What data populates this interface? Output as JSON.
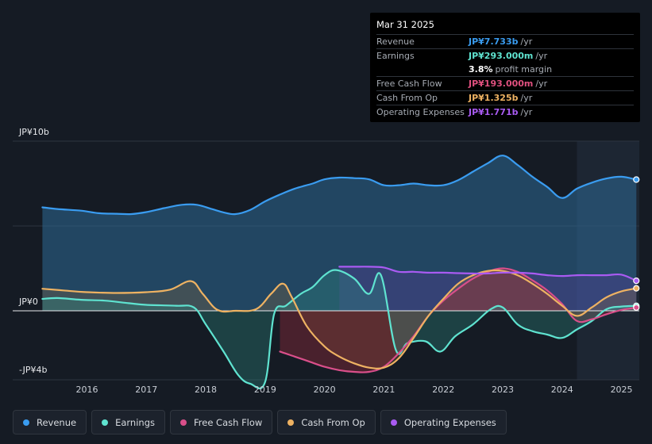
{
  "tooltip": {
    "date": "Mar 31 2025",
    "rows": [
      {
        "label": "Revenue",
        "value": "JP¥7.733b",
        "unit": "/yr",
        "color": "#3a9cf0"
      },
      {
        "label": "Earnings",
        "value": "JP¥293.000m",
        "unit": "/yr",
        "color": "#5fe3d0"
      },
      {
        "label": "",
        "value": "3.8%",
        "unit": "profit margin",
        "color": "#ffffff"
      },
      {
        "label": "Free Cash Flow",
        "value": "JP¥193.000m",
        "unit": "/yr",
        "color": "#e0507f"
      },
      {
        "label": "Cash From Op",
        "value": "JP¥1.325b",
        "unit": "/yr",
        "color": "#eeb262"
      },
      {
        "label": "Operating Expenses",
        "value": "JP¥1.771b",
        "unit": "/yr",
        "color": "#a95bf2"
      }
    ]
  },
  "legend": [
    {
      "label": "Revenue",
      "color": "#3a9cf0"
    },
    {
      "label": "Earnings",
      "color": "#5fe3d0"
    },
    {
      "label": "Free Cash Flow",
      "color": "#d94f8a"
    },
    {
      "label": "Cash From Op",
      "color": "#eeb262"
    },
    {
      "label": "Operating Expenses",
      "color": "#a95bf2"
    }
  ],
  "chart_data": {
    "type": "area",
    "y_unit": "JP¥ billions",
    "ylim": [
      -4,
      10
    ],
    "y_tick_labels": [
      {
        "value": 10,
        "label": "JP¥10b"
      },
      {
        "value": 0,
        "label": "JP¥0"
      },
      {
        "value": -4,
        "label": "-JP¥4b"
      }
    ],
    "x_tick_labels": [
      "2016",
      "2017",
      "2018",
      "2019",
      "2020",
      "2021",
      "2022",
      "2023",
      "2024",
      "2025"
    ],
    "x_tick_values": [
      2016,
      2017,
      2018,
      2019,
      2020,
      2021,
      2022,
      2023,
      2024,
      2025
    ],
    "xlim": [
      2014.75,
      2025.3
    ],
    "highlight_from": 2024.25,
    "series": [
      {
        "name": "Revenue",
        "color": "#3a9cf0",
        "x": [
          2015.25,
          2015.5,
          2015.9,
          2016.2,
          2016.5,
          2016.75,
          2017.0,
          2017.3,
          2017.6,
          2017.85,
          2018.1,
          2018.3,
          2018.5,
          2018.75,
          2019.0,
          2019.25,
          2019.5,
          2019.8,
          2020.0,
          2020.25,
          2020.5,
          2020.75,
          2021.0,
          2021.25,
          2021.5,
          2021.75,
          2022.0,
          2022.25,
          2022.5,
          2022.75,
          2023.0,
          2023.25,
          2023.5,
          2023.75,
          2024.0,
          2024.25,
          2024.5,
          2024.75,
          2025.0,
          2025.25
        ],
        "values": [
          6.1,
          6.0,
          5.9,
          5.75,
          5.72,
          5.7,
          5.82,
          6.05,
          6.25,
          6.25,
          6.0,
          5.8,
          5.7,
          5.95,
          6.45,
          6.85,
          7.2,
          7.5,
          7.75,
          7.85,
          7.82,
          7.75,
          7.4,
          7.4,
          7.5,
          7.4,
          7.4,
          7.7,
          8.2,
          8.7,
          9.15,
          8.6,
          7.9,
          7.3,
          6.65,
          7.2,
          7.55,
          7.8,
          7.9,
          7.733
        ]
      },
      {
        "name": "Earnings",
        "color": "#5fe3d0",
        "x": [
          2015.25,
          2015.5,
          2015.9,
          2016.3,
          2016.7,
          2017.0,
          2017.5,
          2017.8,
          2018.0,
          2018.3,
          2018.55,
          2018.75,
          2019.0,
          2019.15,
          2019.35,
          2019.6,
          2019.8,
          2020.0,
          2020.2,
          2020.5,
          2020.75,
          2020.95,
          2021.2,
          2021.4,
          2021.7,
          2021.95,
          2022.2,
          2022.5,
          2022.8,
          2023.0,
          2023.25,
          2023.5,
          2023.75,
          2024.0,
          2024.25,
          2024.5,
          2024.75,
          2025.0,
          2025.25
        ],
        "values": [
          0.7,
          0.75,
          0.65,
          0.6,
          0.45,
          0.35,
          0.3,
          0.2,
          -0.8,
          -2.4,
          -3.8,
          -4.3,
          -4.2,
          -0.2,
          0.3,
          1.0,
          1.4,
          2.1,
          2.4,
          1.9,
          1.0,
          2.1,
          -2.3,
          -1.9,
          -1.8,
          -2.4,
          -1.5,
          -0.8,
          0.1,
          0.2,
          -0.8,
          -1.2,
          -1.4,
          -1.6,
          -1.1,
          -0.6,
          0.1,
          0.25,
          0.293
        ]
      },
      {
        "name": "Free Cash Flow",
        "color": "#d94f8a",
        "x": [
          2019.25,
          2019.5,
          2019.75,
          2020.0,
          2020.25,
          2020.5,
          2020.75,
          2021.0,
          2021.25,
          2021.5,
          2021.75,
          2022.0,
          2022.25,
          2022.5,
          2022.75,
          2023.0,
          2023.25,
          2023.5,
          2023.75,
          2024.0,
          2024.25,
          2024.5,
          2024.75,
          2025.0,
          2025.25
        ],
        "values": [
          -2.4,
          -2.7,
          -3.0,
          -3.3,
          -3.5,
          -3.6,
          -3.6,
          -3.3,
          -2.5,
          -1.5,
          -0.3,
          0.6,
          1.3,
          1.9,
          2.3,
          2.5,
          2.3,
          1.8,
          1.2,
          0.4,
          -0.6,
          -0.5,
          -0.2,
          0.05,
          0.193
        ]
      },
      {
        "name": "Cash From Op",
        "color": "#eeb262",
        "x": [
          2015.25,
          2015.6,
          2016.0,
          2016.5,
          2017.0,
          2017.4,
          2017.75,
          2017.95,
          2018.2,
          2018.5,
          2018.85,
          2019.1,
          2019.3,
          2019.45,
          2019.7,
          2020.0,
          2020.25,
          2020.5,
          2020.75,
          2021.0,
          2021.25,
          2021.5,
          2021.75,
          2022.0,
          2022.25,
          2022.5,
          2022.75,
          2023.0,
          2023.25,
          2023.5,
          2023.75,
          2024.0,
          2024.25,
          2024.5,
          2024.75,
          2025.0,
          2025.25
        ],
        "values": [
          1.3,
          1.2,
          1.1,
          1.05,
          1.1,
          1.25,
          1.75,
          1.0,
          0.05,
          0.0,
          0.1,
          1.0,
          1.6,
          0.8,
          -0.9,
          -2.1,
          -2.7,
          -3.1,
          -3.35,
          -3.35,
          -2.8,
          -1.6,
          -0.3,
          0.7,
          1.6,
          2.1,
          2.35,
          2.35,
          2.1,
          1.6,
          1.0,
          0.3,
          -0.3,
          0.2,
          0.8,
          1.15,
          1.325
        ]
      },
      {
        "name": "Operating Expenses",
        "color": "#a95bf2",
        "x": [
          2020.25,
          2020.5,
          2020.75,
          2021.0,
          2021.25,
          2021.5,
          2021.75,
          2022.0,
          2022.25,
          2022.5,
          2022.75,
          2023.0,
          2023.25,
          2023.5,
          2023.75,
          2024.0,
          2024.25,
          2024.5,
          2024.75,
          2025.0,
          2025.25
        ],
        "values": [
          2.6,
          2.6,
          2.6,
          2.55,
          2.3,
          2.3,
          2.25,
          2.25,
          2.22,
          2.2,
          2.2,
          2.25,
          2.25,
          2.2,
          2.1,
          2.05,
          2.1,
          2.1,
          2.1,
          2.13,
          1.771
        ]
      }
    ]
  }
}
